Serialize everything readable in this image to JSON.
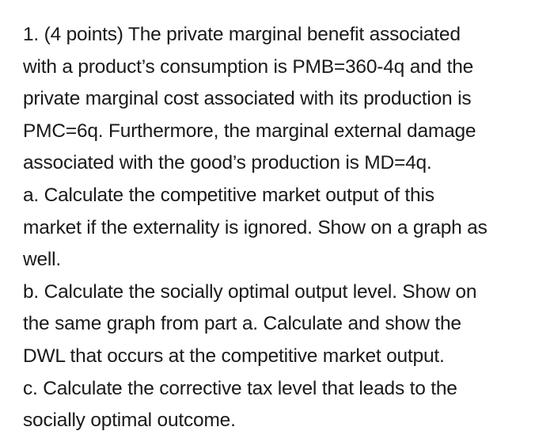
{
  "question": {
    "lines": [
      "1. (4 points) The private marginal benefit associated",
      "with a product’s consumption is PMB=360-4q and the",
      "private marginal cost associated with its production is",
      "PMC=6q. Furthermore, the marginal external damage",
      "associated with the good’s production is MD=4q.",
      "a. Calculate the competitive market output of this",
      "market if the externality is ignored. Show on a graph as",
      "well.",
      "b. Calculate the socially optimal output level. Show on",
      "the same graph from part a. Calculate and show the",
      "DWL that occurs at the competitive market output.",
      "c. Calculate the corrective tax level that leads to the",
      "socially optimal outcome."
    ]
  }
}
